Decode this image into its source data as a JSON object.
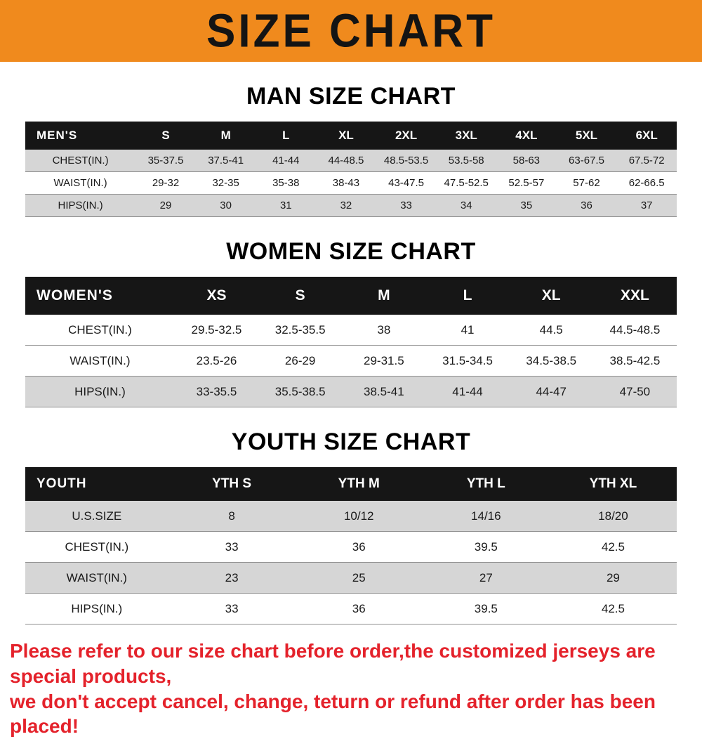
{
  "banner": {
    "title": "SIZE CHART",
    "bg_color": "#f08a1d",
    "text_color": "#141414"
  },
  "sections": [
    {
      "id": "men",
      "heading": "MAN SIZE CHART",
      "header_label": "MEN'S",
      "columns": [
        "S",
        "M",
        "L",
        "XL",
        "2XL",
        "3XL",
        "4XL",
        "5XL",
        "6XL"
      ],
      "rows": [
        {
          "label": "CHEST(IN.)",
          "values": [
            "35-37.5",
            "37.5-41",
            "41-44",
            "44-48.5",
            "48.5-53.5",
            "53.5-58",
            "58-63",
            "63-67.5",
            "67.5-72"
          ]
        },
        {
          "label": "WAIST(IN.)",
          "values": [
            "29-32",
            "32-35",
            "35-38",
            "38-43",
            "43-47.5",
            "47.5-52.5",
            "52.5-57",
            "57-62",
            "62-66.5"
          ]
        },
        {
          "label": "HIPS(IN.)",
          "values": [
            "29",
            "30",
            "31",
            "32",
            "33",
            "34",
            "35",
            "36",
            "37"
          ]
        }
      ]
    },
    {
      "id": "women",
      "heading": "WOMEN SIZE CHART",
      "header_label": "WOMEN'S",
      "columns": [
        "XS",
        "S",
        "M",
        "L",
        "XL",
        "XXL"
      ],
      "rows": [
        {
          "label": "CHEST(IN.)",
          "values": [
            "29.5-32.5",
            "32.5-35.5",
            "38",
            "41",
            "44.5",
            "44.5-48.5"
          ]
        },
        {
          "label": "WAIST(IN.)",
          "values": [
            "23.5-26",
            "26-29",
            "29-31.5",
            "31.5-34.5",
            "34.5-38.5",
            "38.5-42.5"
          ]
        },
        {
          "label": "HIPS(IN.)",
          "values": [
            "33-35.5",
            "35.5-38.5",
            "38.5-41",
            "41-44",
            "44-47",
            "47-50"
          ]
        }
      ]
    },
    {
      "id": "youth",
      "heading": "YOUTH SIZE CHART",
      "header_label": "YOUTH",
      "columns": [
        "YTH S",
        "YTH M",
        "YTH L",
        "YTH XL"
      ],
      "rows": [
        {
          "label": "U.S.SIZE",
          "values": [
            "8",
            "10/12",
            "14/16",
            "18/20"
          ]
        },
        {
          "label": "CHEST(IN.)",
          "values": [
            "33",
            "36",
            "39.5",
            "42.5"
          ]
        },
        {
          "label": "WAIST(IN.)",
          "values": [
            "23",
            "25",
            "27",
            "29"
          ]
        },
        {
          "label": "HIPS(IN.)",
          "values": [
            "33",
            "36",
            "39.5",
            "42.5"
          ]
        }
      ]
    }
  ],
  "footer": {
    "lines": [
      "Please refer to our size chart before order,the customized jerseys are special products,",
      "we don't accept cancel, change, teturn or refund after order has been placed!"
    ],
    "color": "#e4222b"
  }
}
